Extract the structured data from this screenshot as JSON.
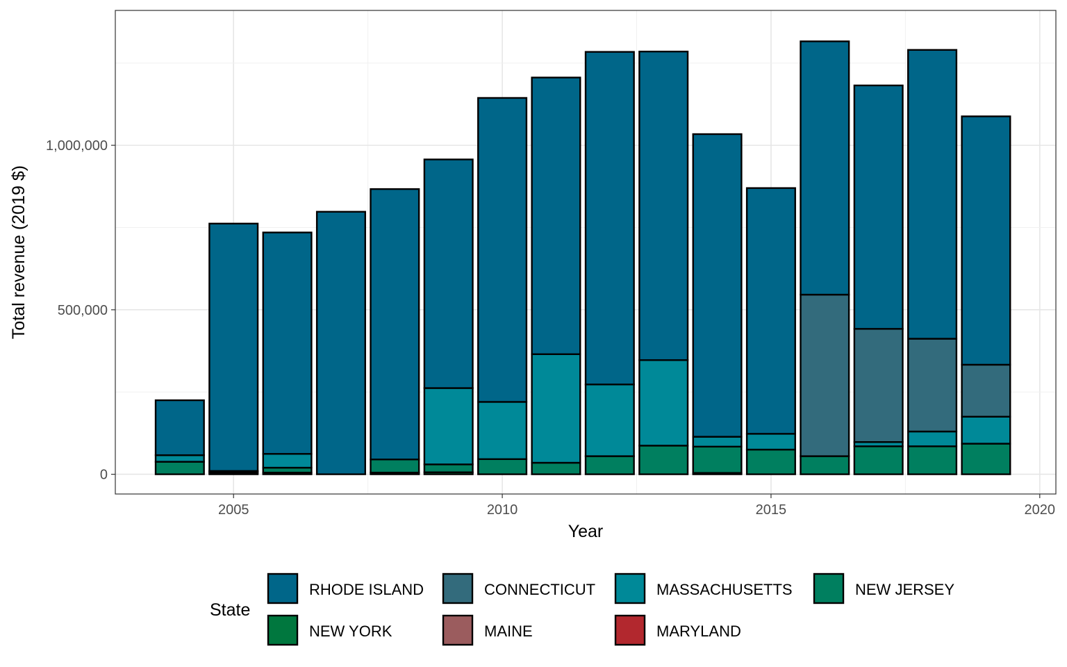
{
  "chart_data": {
    "type": "bar",
    "stacked": true,
    "title": "",
    "xlabel": "Year",
    "ylabel": "Total revenue (2019 $)",
    "xlim": [
      2002.8,
      2020.3
    ],
    "ylim": [
      -60000,
      1410000
    ],
    "xticks": [
      2005,
      2010,
      2015,
      2020
    ],
    "xtick_labels": [
      "2005",
      "2010",
      "2015",
      "2020"
    ],
    "yticks": [
      0,
      500000,
      1000000
    ],
    "ytick_labels": [
      "0",
      "500,000",
      "1,000,000"
    ],
    "grid": true,
    "legend_title": "State",
    "legend_position": "bottom",
    "categories": [
      2004,
      2005,
      2006,
      2007,
      2008,
      2009,
      2010,
      2011,
      2012,
      2013,
      2014,
      2015,
      2016,
      2017,
      2018,
      2019
    ],
    "series": [
      {
        "name": "NEW YORK",
        "color": "#00773E",
        "values": [
          0,
          3000,
          5000,
          0,
          5000,
          6000,
          0,
          0,
          0,
          0,
          4000,
          0,
          0,
          0,
          0,
          0
        ]
      },
      {
        "name": "NEW JERSEY",
        "color": "#007F5F",
        "values": [
          38000,
          5000,
          15000,
          0,
          40000,
          24000,
          46000,
          35000,
          55000,
          87000,
          80000,
          75000,
          55000,
          85000,
          85000,
          93000
        ]
      },
      {
        "name": "MASSACHUSETTS",
        "color": "#008998",
        "values": [
          20000,
          2000,
          42000,
          0,
          0,
          232000,
          174000,
          330000,
          218000,
          260000,
          30000,
          48000,
          0,
          13000,
          45000,
          82000
        ]
      },
      {
        "name": "CONNECTICUT",
        "color": "#336B7C",
        "values": [
          0,
          0,
          0,
          0,
          0,
          0,
          0,
          0,
          0,
          0,
          0,
          0,
          491000,
          344000,
          282000,
          158000
        ]
      },
      {
        "name": "RHODE ISLAND",
        "color": "#006689",
        "values": [
          167000,
          752000,
          673000,
          798000,
          822000,
          695000,
          924000,
          841000,
          1011000,
          938000,
          920000,
          747000,
          770000,
          740000,
          878000,
          755000
        ]
      },
      {
        "name": "MAINE",
        "color": "#9B5C5E",
        "values": [
          0,
          0,
          0,
          0,
          0,
          0,
          0,
          0,
          0,
          0,
          0,
          0,
          0,
          0,
          0,
          0
        ]
      },
      {
        "name": "MARYLAND",
        "color": "#B2282E",
        "values": [
          0,
          0,
          0,
          0,
          0,
          0,
          0,
          0,
          0,
          0,
          0,
          0,
          0,
          0,
          0,
          0
        ]
      }
    ],
    "legend_order": [
      "RHODE ISLAND",
      "CONNECTICUT",
      "MASSACHUSETTS",
      "NEW JERSEY",
      "NEW YORK",
      "MAINE",
      "MARYLAND"
    ]
  }
}
